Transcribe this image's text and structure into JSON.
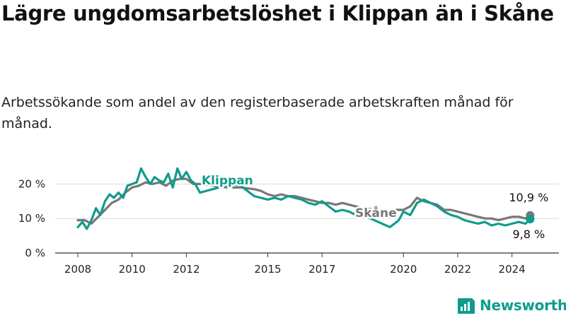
{
  "title": "Lägre ungdomsarbetslöshet i Klippan än i Skåne",
  "subtitle": "Arbetssökande som andel av den registerbaserade arbetskraften månad för månad.",
  "brand": "Newsworthy",
  "colors": {
    "klippan": "#0f9c8c",
    "skane": "#777777",
    "grid": "#d8d8d8",
    "axis": "#333333"
  },
  "chart_data": {
    "type": "line",
    "title": "Lägre ungdomsarbetslöshet i Klippan än i Skåne",
    "subtitle": "Arbetssökande som andel av den registerbaserade arbetskraften månad för månad.",
    "xlabel": "",
    "ylabel": "",
    "xlim": [
      2008,
      2025
    ],
    "ylim": [
      0,
      25
    ],
    "y_ticks": [
      0,
      10,
      20
    ],
    "y_tick_labels": [
      "0 %",
      "10 %",
      "20 %"
    ],
    "x_ticks": [
      2008,
      2010,
      2012,
      2015,
      2017,
      2020,
      2022,
      2024
    ],
    "x_tick_labels": [
      "2008",
      "2010",
      "2012",
      "2015",
      "2017",
      "2020",
      "2022",
      "2024"
    ],
    "grid": true,
    "series": [
      {
        "name": "Skåne",
        "label": "Skåne",
        "color": "#777777",
        "x": [
          2008.0,
          2008.25,
          2008.5,
          2008.75,
          2009.0,
          2009.25,
          2009.5,
          2009.75,
          2010.0,
          2010.25,
          2010.5,
          2010.75,
          2011.0,
          2011.25,
          2011.5,
          2011.75,
          2012.0,
          2012.25,
          2012.5,
          2013.0,
          2013.5,
          2014.0,
          2014.5,
          2014.75,
          2015.0,
          2015.25,
          2015.5,
          2015.75,
          2016.0,
          2016.25,
          2016.5,
          2016.75,
          2017.0,
          2017.25,
          2017.5,
          2017.75,
          2018.0,
          2018.25,
          2018.5,
          2019.0,
          2019.5,
          2019.75,
          2020.0,
          2020.25,
          2020.5,
          2020.75,
          2021.0,
          2021.25,
          2021.5,
          2021.75,
          2022.0,
          2022.25,
          2022.5,
          2022.75,
          2023.0,
          2023.25,
          2023.5,
          2023.75,
          2024.0,
          2024.25,
          2024.5,
          2024.67
        ],
        "values": [
          9.5,
          9.5,
          8.5,
          10.5,
          12.5,
          14.5,
          15.5,
          17.5,
          19.0,
          19.5,
          20.5,
          20.0,
          20.5,
          19.5,
          21.0,
          21.5,
          21.5,
          20.0,
          20.0,
          19.5,
          19.0,
          19.0,
          18.5,
          18.0,
          17.0,
          16.5,
          17.0,
          16.5,
          16.5,
          16.0,
          15.5,
          15.0,
          14.5,
          14.5,
          14.0,
          14.5,
          14.0,
          13.5,
          13.0,
          12.5,
          12.0,
          12.5,
          12.5,
          13.5,
          16.0,
          15.0,
          14.5,
          14.0,
          12.5,
          12.5,
          12.0,
          11.5,
          11.0,
          10.5,
          10.0,
          10.0,
          9.5,
          10.0,
          10.5,
          10.5,
          10.0,
          10.9
        ]
      },
      {
        "name": "Klippan",
        "label": "Klippan",
        "color": "#0f9c8c",
        "x": [
          2008.0,
          2008.17,
          2008.33,
          2008.5,
          2008.67,
          2008.83,
          2009.0,
          2009.17,
          2009.33,
          2009.5,
          2009.67,
          2009.83,
          2010.0,
          2010.17,
          2010.33,
          2010.5,
          2010.67,
          2010.83,
          2011.0,
          2011.17,
          2011.33,
          2011.5,
          2011.67,
          2011.83,
          2012.0,
          2012.17,
          2012.33,
          2012.5,
          2013.67,
          2014.0,
          2014.25,
          2014.5,
          2014.75,
          2015.0,
          2015.25,
          2015.5,
          2015.75,
          2016.0,
          2016.25,
          2016.5,
          2016.75,
          2017.0,
          2017.25,
          2017.5,
          2017.75,
          2018.0,
          2018.25,
          2018.5,
          2019.5,
          2019.67,
          2019.83,
          2020.0,
          2020.25,
          2020.5,
          2020.75,
          2021.0,
          2021.25,
          2021.5,
          2021.75,
          2022.0,
          2022.25,
          2022.5,
          2022.75,
          2023.0,
          2023.25,
          2023.5,
          2023.75,
          2024.0,
          2024.25,
          2024.5,
          2024.67
        ],
        "values": [
          7.5,
          9.0,
          7.0,
          9.5,
          13.0,
          11.0,
          15.0,
          17.0,
          16.0,
          17.5,
          16.0,
          19.5,
          20.0,
          20.5,
          24.5,
          22.0,
          20.0,
          22.0,
          21.0,
          20.5,
          23.0,
          19.0,
          24.5,
          21.5,
          23.5,
          21.0,
          20.0,
          17.5,
          20.0,
          19.5,
          18.0,
          16.5,
          16.0,
          15.5,
          16.0,
          15.5,
          16.5,
          16.0,
          15.5,
          14.5,
          14.0,
          15.0,
          13.5,
          12.0,
          12.5,
          12.0,
          11.0,
          11.0,
          7.5,
          8.5,
          9.5,
          12.0,
          11.0,
          14.5,
          15.5,
          14.5,
          13.5,
          12.0,
          11.0,
          10.5,
          9.5,
          9.0,
          8.5,
          9.0,
          8.0,
          8.5,
          8.0,
          8.5,
          9.0,
          8.5,
          9.8
        ]
      }
    ],
    "end_labels": [
      {
        "series": "Skåne",
        "value": 10.9,
        "text": "10,9 %"
      },
      {
        "series": "Klippan",
        "value": 9.8,
        "text": "9,8 %"
      }
    ]
  }
}
